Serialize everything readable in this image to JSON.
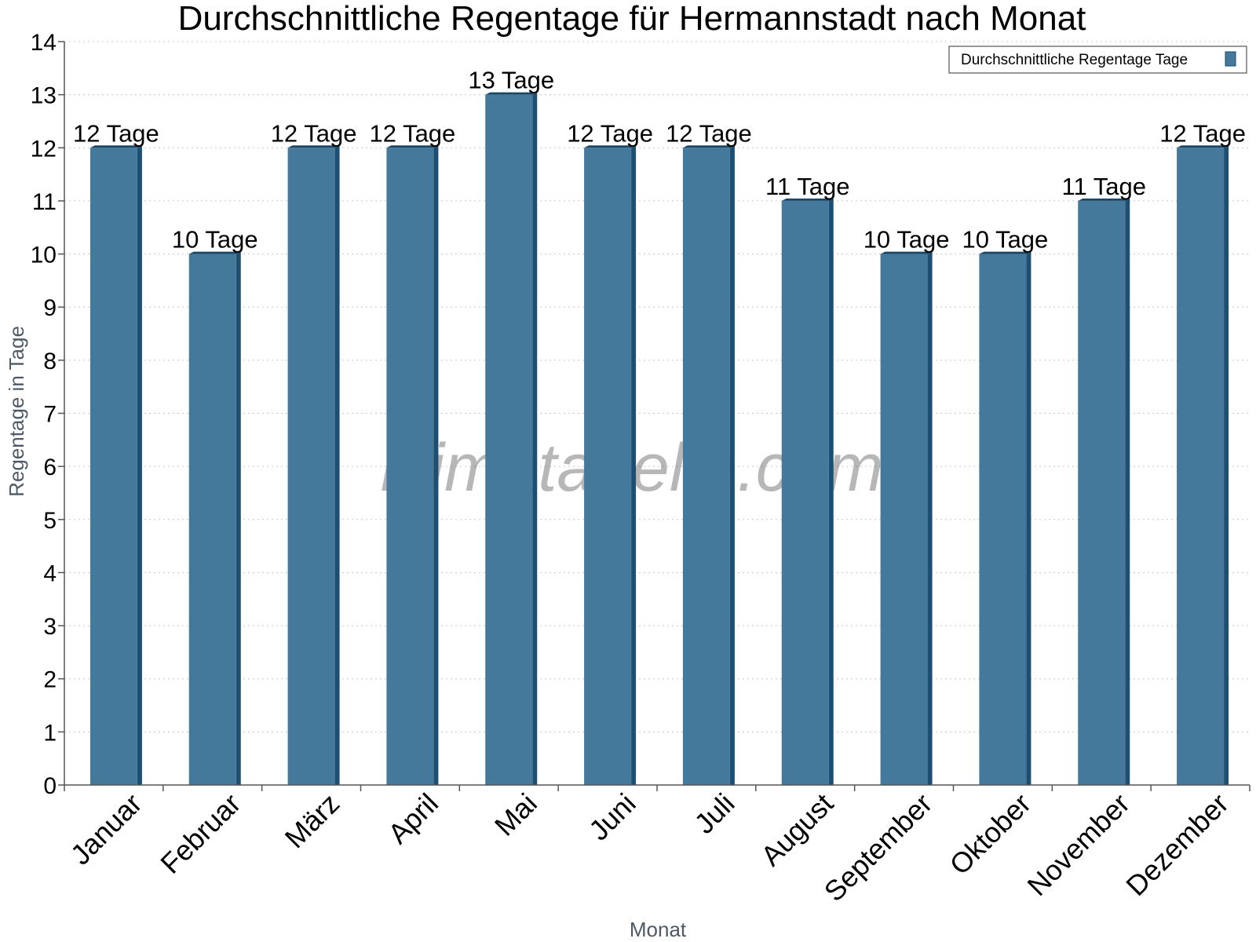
{
  "chart_data": {
    "type": "bar",
    "title": "Durchschnittliche Regentage für Hermannstadt nach Monat",
    "xlabel": "Monat",
    "ylabel": "Regentage in Tage",
    "ylim": [
      0,
      14
    ],
    "yticks": [
      "0",
      "1",
      "2",
      "3",
      "4",
      "5",
      "6",
      "7",
      "8",
      "9",
      "10",
      "11",
      "12",
      "13",
      "14"
    ],
    "grid": true,
    "legend_position": "top-right",
    "categories": [
      "Januar",
      "Februar",
      "März",
      "April",
      "Mai",
      "Juni",
      "Juli",
      "August",
      "September",
      "Oktober",
      "November",
      "Dezember"
    ],
    "series": [
      {
        "name": "Durchschnittliche Regentage Tage",
        "color": "#45799b",
        "values": [
          12,
          10,
          12,
          12,
          13,
          12,
          12,
          11,
          10,
          10,
          11,
          12
        ],
        "labels": [
          "12 Tage",
          "10 Tage",
          "12 Tage",
          "12 Tage",
          "13 Tage",
          "12 Tage",
          "12 Tage",
          "11 Tage",
          "10 Tage",
          "10 Tage",
          "11 Tage",
          "12 Tage"
        ]
      }
    ],
    "watermark": "klimatabelle.com"
  }
}
